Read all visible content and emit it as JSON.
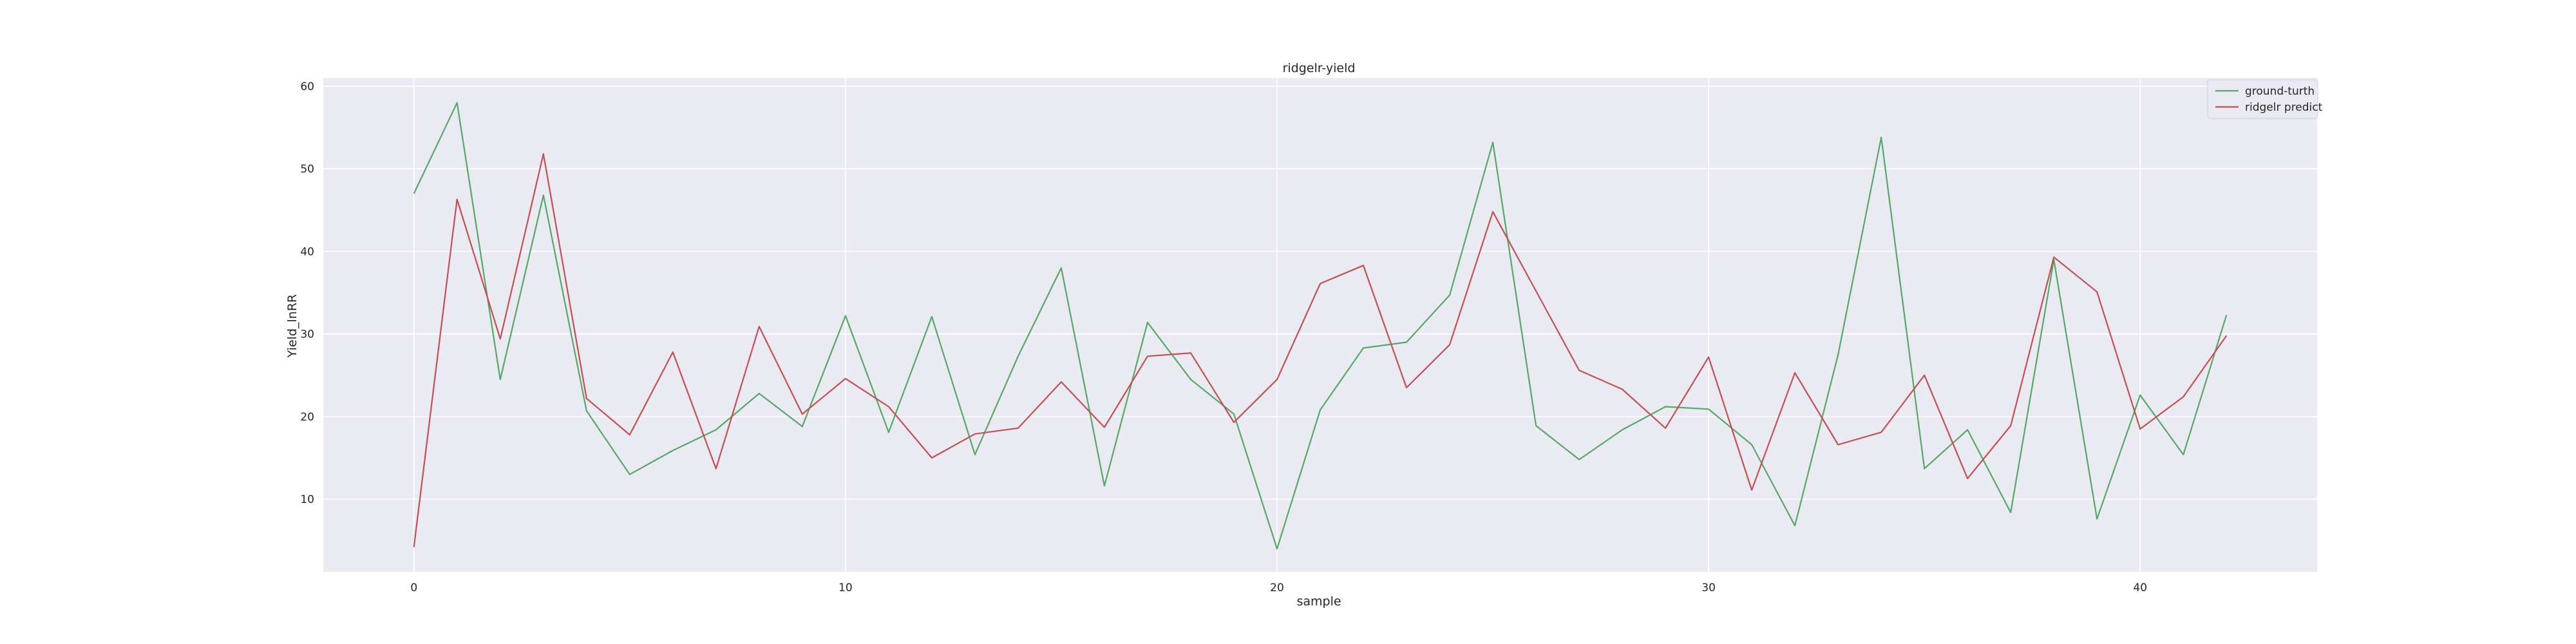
{
  "chart_data": {
    "type": "line",
    "title": "ridgelr-yield",
    "xlabel": "sample",
    "ylabel": "Yield_lnRR",
    "xlim": [
      -2.1,
      44.1
    ],
    "ylim": [
      1.2,
      61
    ],
    "xticks": [
      0,
      10,
      20,
      30,
      40
    ],
    "yticks": [
      10,
      20,
      30,
      40,
      50,
      60
    ],
    "grid": true,
    "legend_position": "top-right",
    "x": [
      0,
      1,
      2,
      3,
      4,
      5,
      6,
      7,
      8,
      9,
      10,
      11,
      12,
      13,
      14,
      15,
      16,
      17,
      18,
      19,
      20,
      21,
      22,
      23,
      24,
      25,
      26,
      27,
      28,
      29,
      30,
      31,
      32,
      33,
      34,
      35,
      36,
      37,
      38,
      39,
      40,
      41,
      42
    ],
    "series": [
      {
        "name": "ground-turth",
        "color": "#55a868",
        "values": [
          47.0,
          58.0,
          24.5,
          46.8,
          20.7,
          13.0,
          15.9,
          18.4,
          22.8,
          18.8,
          32.2,
          18.1,
          32.1,
          15.4,
          27.3,
          38.0,
          11.6,
          31.4,
          24.5,
          20.3,
          4.0,
          20.8,
          28.3,
          29.0,
          34.7,
          53.2,
          18.9,
          14.8,
          18.4,
          21.2,
          20.9,
          16.6,
          6.8,
          27.5,
          53.8,
          13.7,
          18.4,
          8.4,
          39.0,
          7.6,
          22.6,
          15.4,
          32.3
        ]
      },
      {
        "name": "ridgelr predict",
        "color": "#c44e52",
        "values": [
          4.2,
          46.3,
          29.4,
          51.8,
          22.2,
          17.8,
          27.8,
          13.7,
          30.9,
          20.3,
          24.6,
          21.2,
          15.0,
          17.9,
          18.6,
          24.2,
          18.7,
          27.3,
          27.7,
          19.3,
          24.5,
          36.1,
          38.3,
          23.5,
          28.7,
          44.8,
          35.2,
          25.6,
          23.3,
          18.6,
          27.2,
          11.1,
          25.3,
          16.6,
          18.1,
          25.0,
          12.5,
          18.9,
          39.3,
          35.1,
          18.5,
          22.4,
          29.8
        ]
      }
    ]
  }
}
